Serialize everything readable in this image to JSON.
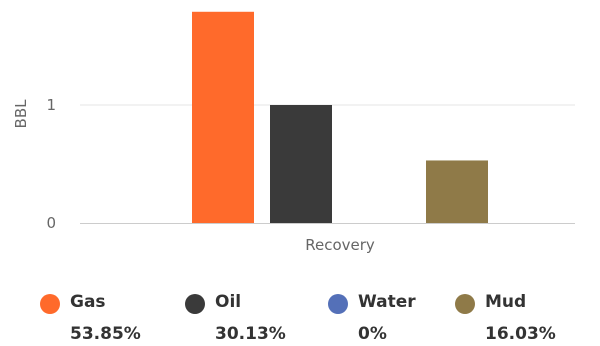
{
  "chart_data": {
    "type": "bar",
    "categories": [
      "Recovery"
    ],
    "xlabel": "Recovery",
    "ylabel": "BBL",
    "ylim": [
      0,
      2
    ],
    "yticks": [
      0,
      1
    ],
    "grid": true,
    "legend_placement": "bottom",
    "series": [
      {
        "name": "Gas",
        "values": [
          1.79
        ],
        "color": "#ff6a2b",
        "percent": "53.85%"
      },
      {
        "name": "Oil",
        "values": [
          1.0
        ],
        "color": "#3a3a3a",
        "percent": "30.13%"
      },
      {
        "name": "Water",
        "values": [
          0
        ],
        "color": "#5470b8",
        "percent": "0%"
      },
      {
        "name": "Mud",
        "values": [
          0.53
        ],
        "color": "#8f7a48",
        "percent": "16.03%"
      }
    ]
  }
}
